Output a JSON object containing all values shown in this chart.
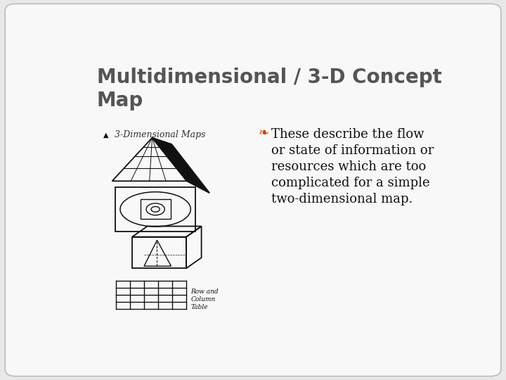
{
  "title": "Multidimensional / 3-D Concept\nMap",
  "title_fontsize": 20,
  "title_color": "#555555",
  "title_fontweight": "bold",
  "body_lines": [
    "These describe the flow",
    "or state of information or",
    "resources which are too",
    "complicated for a simple",
    "two-dimensional map."
  ],
  "body_fontsize": 13,
  "body_color": "#111111",
  "bullet_label": "3-Dimensional Maps",
  "bullet_label_color": "#333333",
  "bullet_label_fontsize": 9,
  "bg_color": "#e8e8e8",
  "slide_bg": "#f8f8f8",
  "border_color": "#bbbbbb",
  "sketch_color": "#111111",
  "ornament_color": "#cc4400"
}
